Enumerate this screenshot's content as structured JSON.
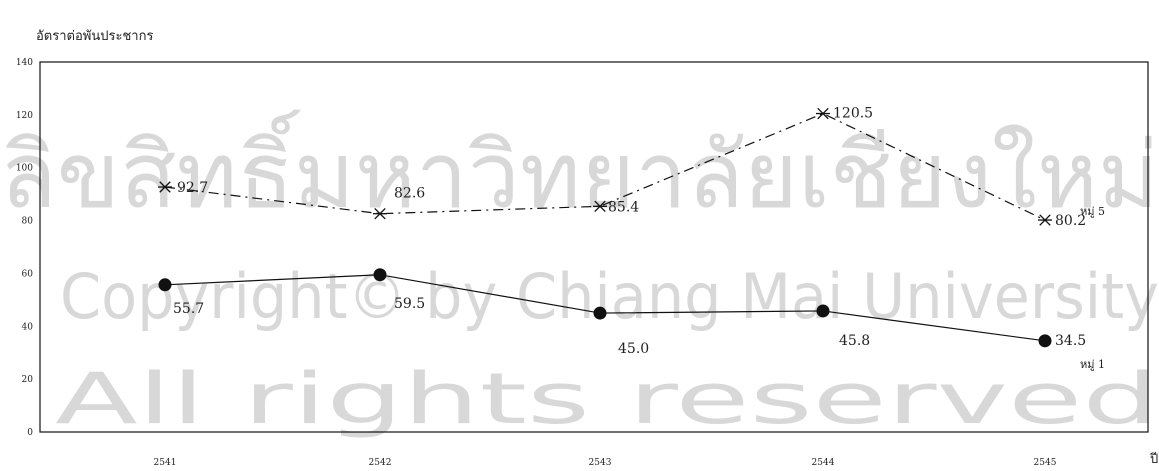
{
  "watermark": {
    "line1": "ลิขสิทธิ์มหาวิทยาลัยเชียงใหม่",
    "line2": "Copyright© by Chiang Mai University",
    "line3": "All rights reserved"
  },
  "colors": {
    "line": "#111111",
    "watermark": "#d8d8d8",
    "frame": "#111111"
  },
  "chart_data": {
    "type": "line",
    "title": "",
    "ylabel": "อัตราต่อพันประชากร",
    "xlabel": "ปี",
    "ylim": [
      0,
      140
    ],
    "yticks": [
      "0",
      "20",
      "40",
      "60",
      "80",
      "100",
      "120",
      "140"
    ],
    "categories": [
      "2541",
      "2542",
      "2543",
      "2544",
      "2545"
    ],
    "grid": false,
    "legend": "none",
    "series": [
      {
        "name": "หมู่ 5",
        "marker": "asterisk",
        "style": "dash-dot",
        "values": [
          92.7,
          82.6,
          85.4,
          120.5,
          80.2
        ],
        "labels": [
          "92.7",
          "82.6",
          "85.4",
          "120.5",
          "80.2"
        ]
      },
      {
        "name": "หมู่ 1",
        "marker": "circle",
        "style": "solid",
        "values": [
          55.7,
          59.5,
          45.0,
          45.8,
          34.5
        ],
        "labels": [
          "55.7",
          "59.5",
          "45.0",
          "45.8",
          "34.5"
        ]
      }
    ]
  }
}
